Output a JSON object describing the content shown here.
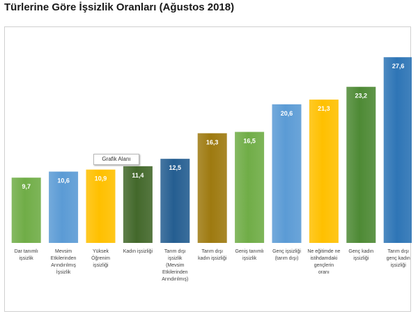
{
  "title": "Türlerine Göre İşsizlik Oranları (Ağustos 2018)",
  "tooltip": "Grafik Alanı",
  "chart_data": {
    "type": "bar",
    "title": "Türlerine Göre İşsizlik Oranları (Ağustos 2018)",
    "xlabel": "",
    "ylabel": "",
    "ylim": [
      0,
      30
    ],
    "grid": false,
    "legend": "none",
    "categories": [
      [
        "Dar tanımlı",
        "işsizlik"
      ],
      [
        "Mevsim",
        "Etkilerinden",
        "Arındırılmış",
        "İşsizlik"
      ],
      [
        "Yüksek",
        "Öğrenim",
        "işsizliği"
      ],
      [
        "Kadın işsizliği"
      ],
      [
        "Tarım dışı",
        "işsizlik",
        "(Mevsim",
        "Etkilerinden",
        "Arındırılmış)"
      ],
      [
        "Tarım dışı",
        "kadın işsizliği"
      ],
      [
        "Geniş tanımlı",
        "işsizlik"
      ],
      [
        "Genç işsizliği",
        "(tarım dışı)"
      ],
      [
        "Ne eğitimde ne",
        "istihdamdaki",
        "gençlerin",
        "oranı"
      ],
      [
        "Genç kadın",
        "işsizliği"
      ],
      [
        "Tarım dışı",
        "genç kadın",
        "işsizliği"
      ]
    ],
    "values": [
      9.7,
      10.6,
      10.9,
      11.4,
      12.5,
      16.3,
      16.5,
      20.6,
      21.3,
      23.2,
      27.6
    ],
    "value_labels": [
      "9,7",
      "10,6",
      "10,9",
      "11,4",
      "12,5",
      "16,3",
      "16,5",
      "20,6",
      "21,3",
      "23,2",
      "27,6"
    ],
    "colors": [
      "#70ad47",
      "#5b9bd5",
      "#ffc000",
      "#43682b",
      "#255e91",
      "#9e7a10",
      "#70ad47",
      "#5b9bd5",
      "#ffc000",
      "#4e8a35",
      "#2e75b6"
    ]
  }
}
